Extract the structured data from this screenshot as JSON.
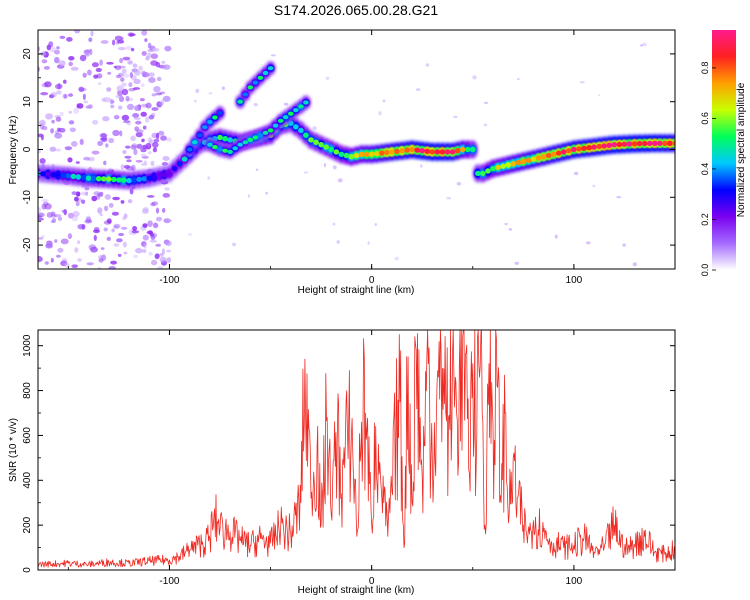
{
  "title": "S174.2026.065.00.28.G21",
  "chart_data": [
    {
      "type": "heatmap",
      "title": "S174.2026.065.00.28.G21",
      "xlabel": "Height of straight line (km)",
      "ylabel": "Frequency (Hz)",
      "xlim": [
        -165,
        150
      ],
      "ylim": [
        -25,
        25
      ],
      "xticks": [
        -100,
        0,
        100
      ],
      "yticks": [
        -20,
        -10,
        0,
        10,
        20
      ],
      "colorbar": {
        "label": "Normalized spectral amplitude",
        "range": [
          0,
          0.95
        ],
        "ticks": [
          0.0,
          0.2,
          0.4,
          0.6,
          0.8
        ],
        "colors": [
          "#ffffff",
          "#a56cff",
          "#7a00f0",
          "#0000ff",
          "#00c8ff",
          "#00ff5a",
          "#c8ff00",
          "#ffa000",
          "#ff2020",
          "#ff1a8c"
        ]
      },
      "ridge": {
        "x": [
          -165,
          -150,
          -140,
          -130,
          -120,
          -110,
          -100,
          -95,
          -90,
          -85,
          -80,
          -75,
          -70,
          -65,
          -60,
          -55,
          -50,
          -45,
          -40,
          -35,
          -30,
          -25,
          -20,
          -15,
          -10,
          -5,
          0,
          10,
          20,
          30,
          40,
          45,
          50,
          52,
          55,
          60,
          70,
          80,
          90,
          100,
          110,
          120,
          130,
          140,
          150
        ],
        "y": [
          -5,
          -5.5,
          -6,
          -6.2,
          -6.5,
          -6,
          -5,
          -3,
          -1,
          1,
          2,
          2.5,
          2,
          1.5,
          2,
          2.5,
          3,
          5,
          5.5,
          4,
          2,
          1,
          0,
          -1,
          -1.5,
          -1,
          -1,
          -0.5,
          0,
          -0.5,
          -0.5,
          0,
          0,
          -5,
          -5,
          -4,
          -3,
          -2,
          -1,
          0,
          0.5,
          1,
          1.2,
          1.3,
          1.3
        ],
        "amplitude": [
          0.3,
          0.4,
          0.45,
          0.5,
          0.45,
          0.35,
          0.3,
          0.35,
          0.4,
          0.4,
          0.45,
          0.5,
          0.45,
          0.5,
          0.5,
          0.55,
          0.55,
          0.5,
          0.45,
          0.45,
          0.5,
          0.5,
          0.55,
          0.55,
          0.6,
          0.65,
          0.7,
          0.8,
          0.85,
          0.9,
          0.85,
          0.7,
          0.5,
          0.4,
          0.5,
          0.6,
          0.7,
          0.75,
          0.8,
          0.85,
          0.85,
          0.9,
          0.9,
          0.9,
          0.85
        ]
      },
      "branches": [
        {
          "x": [
            -90,
            -85,
            -82,
            -78,
            -74
          ],
          "y": [
            0,
            3,
            5,
            6.5,
            8
          ]
        },
        {
          "x": [
            -65,
            -60,
            -55,
            -50,
            -48
          ],
          "y": [
            10,
            13,
            15,
            17,
            18
          ]
        },
        {
          "x": [
            -80,
            -75,
            -70,
            -65,
            -60,
            -55,
            -50,
            -45,
            -40,
            -35,
            -32
          ],
          "y": [
            1,
            0,
            -0.5,
            1,
            2,
            3,
            4,
            6,
            7.5,
            9,
            10
          ]
        }
      ],
      "noise_region": {
        "x": [
          -165,
          -100
        ],
        "y": [
          -25,
          25
        ]
      }
    },
    {
      "type": "line",
      "xlabel": "Height of straight line (km)",
      "ylabel": "SNR (10 * v/v)",
      "xlim": [
        -165,
        150
      ],
      "ylim": [
        0,
        1070
      ],
      "xticks": [
        -100,
        0,
        100
      ],
      "yticks": [
        0,
        200,
        400,
        600,
        800,
        1000
      ],
      "series": [
        {
          "name": "SNR",
          "color": "#ee2a22",
          "x": [
            -165,
            -150,
            -140,
            -130,
            -120,
            -110,
            -100,
            -95,
            -90,
            -85,
            -80,
            -78,
            -75,
            -70,
            -65,
            -60,
            -55,
            -50,
            -45,
            -40,
            -35,
            -33,
            -30,
            -27,
            -25,
            -22,
            -20,
            -17,
            -15,
            -12,
            -10,
            -7,
            -5,
            -3,
            0,
            2,
            4,
            6,
            8,
            10,
            12,
            14,
            16,
            18,
            20,
            22,
            25,
            28,
            30,
            32,
            35,
            38,
            40,
            42,
            45,
            48,
            50,
            52,
            54,
            56,
            58,
            60,
            62,
            64,
            66,
            68,
            70,
            72,
            75,
            78,
            80,
            85,
            90,
            95,
            100,
            105,
            110,
            115,
            120,
            125,
            130,
            135,
            140,
            145,
            150
          ],
          "y": [
            25,
            30,
            25,
            35,
            30,
            40,
            45,
            60,
            90,
            110,
            140,
            240,
            180,
            170,
            130,
            110,
            140,
            120,
            190,
            160,
            300,
            940,
            320,
            550,
            200,
            680,
            250,
            600,
            340,
            620,
            600,
            180,
            660,
            700,
            200,
            640,
            480,
            300,
            150,
            350,
            600,
            750,
            100,
            950,
            300,
            980,
            420,
            920,
            500,
            700,
            900,
            680,
            980,
            700,
            1040,
            450,
            920,
            600,
            1060,
            200,
            920,
            650,
            820,
            300,
            700,
            250,
            500,
            320,
            200,
            160,
            220,
            170,
            120,
            100,
            110,
            140,
            80,
            100,
            200,
            90,
            110,
            150,
            80,
            70,
            90
          ]
        }
      ]
    }
  ]
}
